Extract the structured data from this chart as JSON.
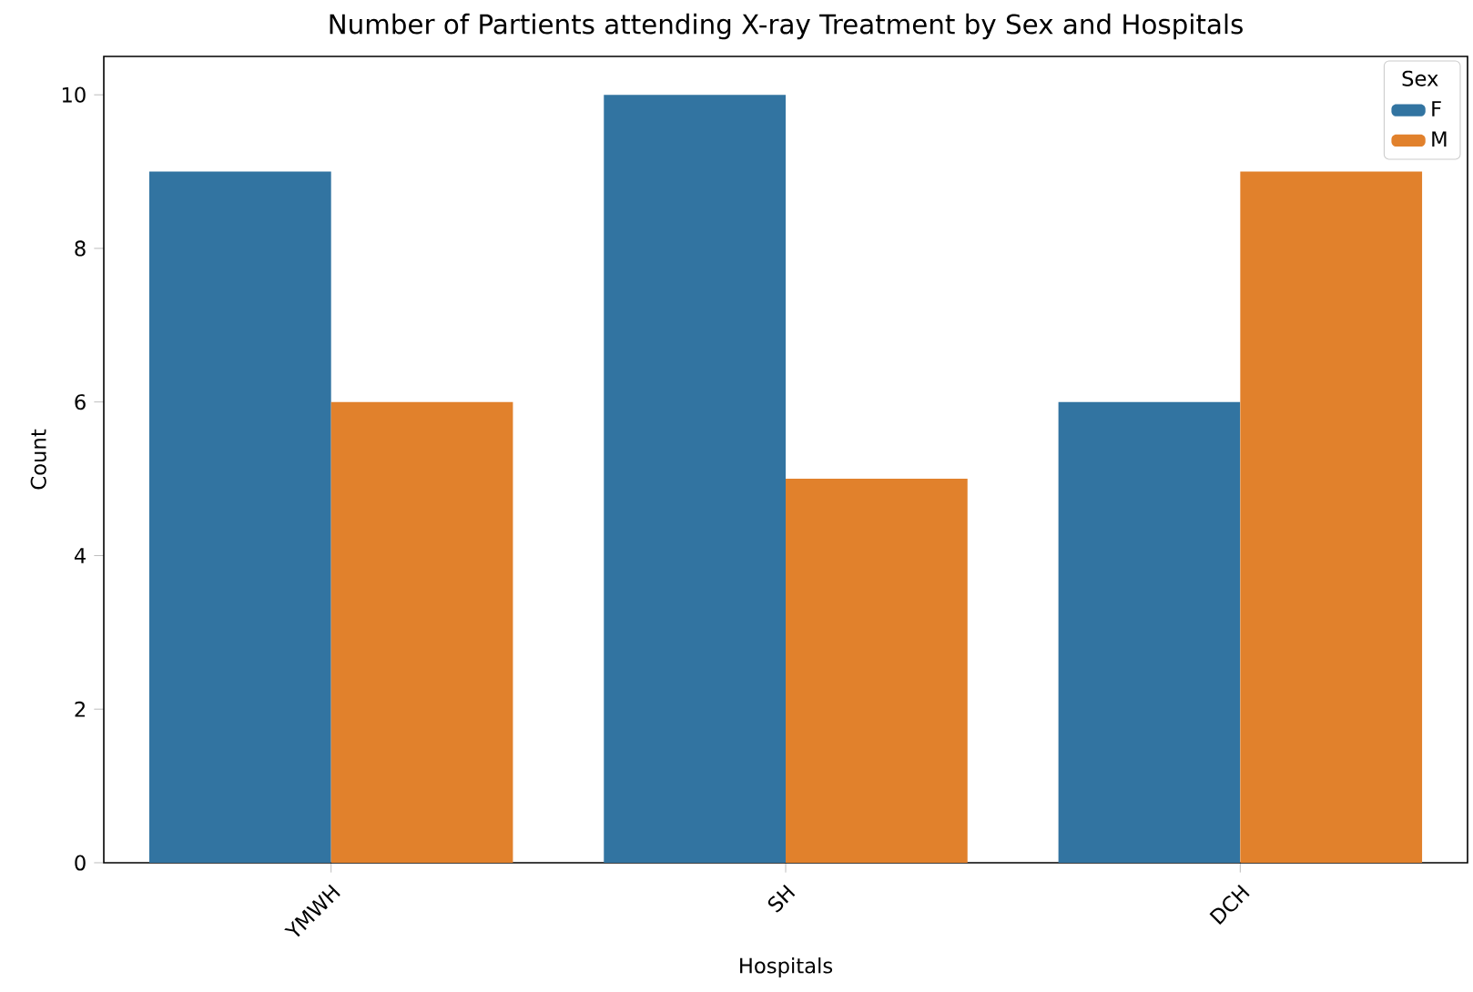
{
  "chart_data": {
    "type": "bar",
    "title": "Number of Partients attending X-ray Treatment by Sex and Hospitals",
    "xlabel": "Hospitals",
    "ylabel": "Count",
    "legend_title": "Sex",
    "categories": [
      "YMWH",
      "SH",
      "DCH"
    ],
    "series": [
      {
        "name": "F",
        "color": "#3274a1",
        "values": [
          9,
          10,
          6
        ]
      },
      {
        "name": "M",
        "color": "#e1812c",
        "values": [
          6,
          5,
          9
        ]
      }
    ],
    "ylim": [
      0,
      10.5
    ],
    "yticks": [
      0,
      2,
      4,
      6,
      8,
      10
    ],
    "legend": "top right",
    "grid": false
  }
}
